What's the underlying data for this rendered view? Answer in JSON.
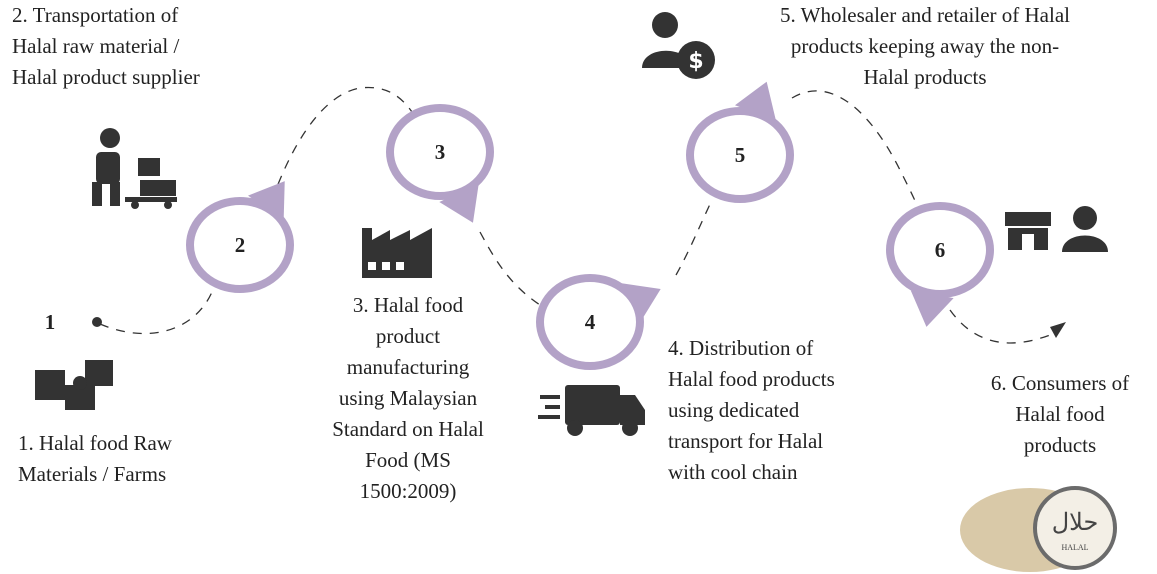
{
  "steps": [
    {
      "number": "1",
      "label_lines": [
        "1. Halal food Raw",
        "Materials / Farms"
      ]
    },
    {
      "number": "2",
      "label_lines": [
        "2. Transportation of",
        "Halal raw material /",
        "Halal product supplier"
      ]
    },
    {
      "number": "3",
      "label_lines": [
        "3. Halal food",
        "product",
        "manufacturing",
        "using Malaysian",
        "Standard on Halal",
        "Food (MS",
        "1500:2009)"
      ]
    },
    {
      "number": "4",
      "label_lines": [
        "4. Distribution of",
        "Halal food products",
        "using dedicated",
        "transport for Halal",
        "with cool chain"
      ]
    },
    {
      "number": "5",
      "label_lines": [
        "5. Wholesaler and retailer of Halal",
        "products keeping away the non-",
        "Halal products"
      ]
    },
    {
      "number": "6",
      "label_lines": [
        "6. Consumers of",
        "Halal food",
        "products"
      ]
    }
  ],
  "logo": {
    "arabic": "حلال",
    "latin": "HALAL"
  }
}
